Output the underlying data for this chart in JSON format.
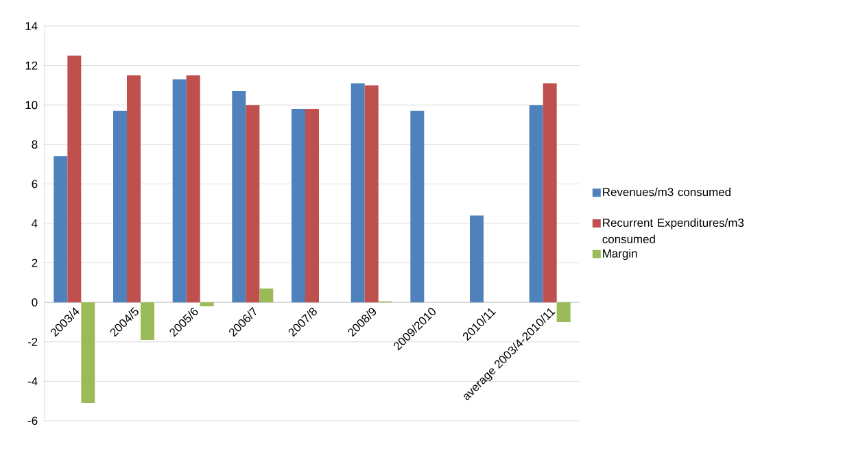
{
  "chart_data": {
    "type": "bar",
    "categories": [
      "2003/4",
      "2004/5",
      "2005/6",
      "2006/7",
      "2007/8",
      "2008/9",
      "2009/2010",
      "2010/11",
      "average 2003/4-2010/11"
    ],
    "series": [
      {
        "name": "Revenues/m3 consumed",
        "color": "#4f81bd",
        "values": [
          7.4,
          9.7,
          11.3,
          10.7,
          9.8,
          11.1,
          9.7,
          4.4,
          10.0
        ]
      },
      {
        "name": "Recurrent Expenditures/m3 consumed",
        "color": "#c0504d",
        "values": [
          12.5,
          11.5,
          11.5,
          10.0,
          9.8,
          11.0,
          null,
          null,
          11.1
        ]
      },
      {
        "name": "Margin",
        "color": "#9bbb59",
        "values": [
          -5.1,
          -1.9,
          -0.2,
          0.7,
          null,
          0.05,
          null,
          null,
          -1.0
        ]
      }
    ],
    "ylim": [
      -6,
      14
    ],
    "yticks": [
      -6,
      -4,
      -2,
      0,
      2,
      4,
      6,
      8,
      10,
      12,
      14
    ],
    "grid": "y",
    "legend": "right"
  }
}
